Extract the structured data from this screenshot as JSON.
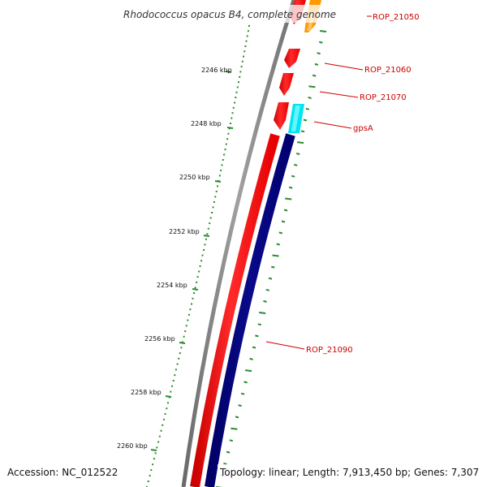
{
  "title": "Rhodococcus opacus B4, complete genome",
  "footer": {
    "accession": "Accession: NC_012522",
    "topology": "Topology: linear; Length: 7,913,450 bp; Genes: 7,307"
  },
  "colors": {
    "backbone": "#808080",
    "forward_genes": "#ff0000",
    "reverse_genes": "#000080",
    "tick_green": "#2e8b2e",
    "label_red": "#cc0000",
    "gene_orange": "#ff9900",
    "gene_cyan": "#00e5ee"
  },
  "ruler": {
    "tick_labels": [
      "2246 kbp",
      "2248 kbp",
      "2250 kbp",
      "2252 kbp",
      "2254 kbp",
      "2256 kbp",
      "2258 kbp",
      "2260 kbp"
    ]
  },
  "gene_labels": [
    "ROP_21050",
    "ROP_21060",
    "ROP_21070",
    "gpsA",
    "ROP_21090"
  ]
}
